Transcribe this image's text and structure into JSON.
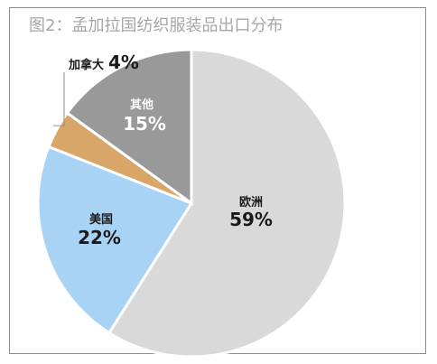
{
  "chart_data": {
    "type": "pie",
    "title": "图2：孟加拉国纺织服装品出口分布",
    "slices": [
      {
        "label": "欧洲",
        "value": 59,
        "value_label": "59%",
        "color": "#d9d9d9",
        "text_color": "#1a1a1a"
      },
      {
        "label": "美国",
        "value": 22,
        "value_label": "22%",
        "color": "#a9d3f5",
        "text_color": "#1a1a1a"
      },
      {
        "label": "加拿大",
        "value": 4,
        "value_label": "4%",
        "color": "#d9a66a",
        "text_color": "#1a1a1a"
      },
      {
        "label": "其他",
        "value": 15,
        "value_label": "15%",
        "color": "#999999",
        "text_color": "#ffffff"
      }
    ]
  }
}
